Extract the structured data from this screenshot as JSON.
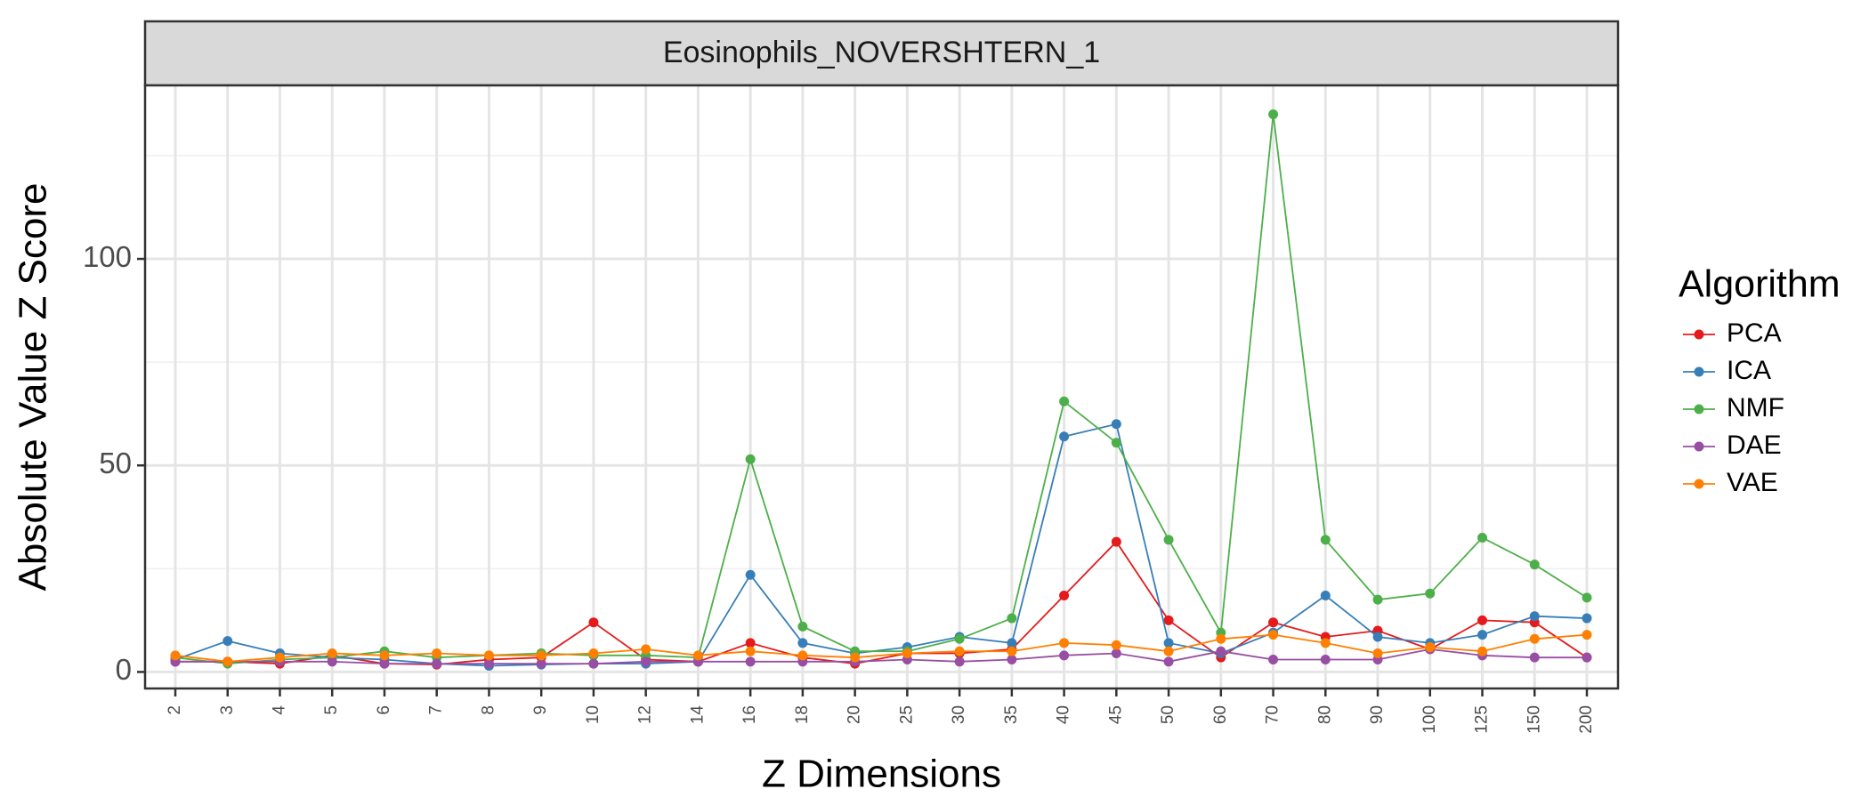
{
  "chart_data": {
    "type": "line",
    "facet_title": "Eosinophils_NOVERSHTERN_1",
    "xlabel": "Z Dimensions",
    "ylabel": "Absolute Value Z Score",
    "categories": [
      "2",
      "3",
      "4",
      "5",
      "6",
      "7",
      "8",
      "9",
      "10",
      "12",
      "14",
      "16",
      "18",
      "20",
      "25",
      "30",
      "35",
      "40",
      "45",
      "50",
      "60",
      "70",
      "80",
      "90",
      "100",
      "125",
      "150",
      "200"
    ],
    "yticks": [
      0,
      50,
      100
    ],
    "ylim": [
      -4,
      142
    ],
    "grid": true,
    "legend": {
      "title": "Algorithm",
      "placement": "right"
    },
    "series": [
      {
        "name": "PCA",
        "color": "#E41A1C",
        "values": [
          2.5,
          2.5,
          2.0,
          4.0,
          2.0,
          1.8,
          3.0,
          3.5,
          12.0,
          3.0,
          2.5,
          7.0,
          3.5,
          2.0,
          4.5,
          4.5,
          5.5,
          18.5,
          31.5,
          12.5,
          3.5,
          12.0,
          8.5,
          10.0,
          5.5,
          12.5,
          12.0,
          3.5
        ]
      },
      {
        "name": "ICA",
        "color": "#377EB8",
        "values": [
          3.0,
          7.5,
          4.5,
          3.5,
          3.0,
          2.0,
          1.5,
          1.8,
          2.0,
          2.0,
          2.5,
          23.5,
          7.0,
          4.5,
          6.0,
          8.5,
          7.0,
          57.0,
          60.0,
          7.0,
          4.5,
          9.5,
          18.5,
          8.5,
          7.0,
          9.0,
          13.5,
          13.0
        ]
      },
      {
        "name": "NMF",
        "color": "#4DAF4A",
        "values": [
          3.5,
          2.0,
          3.0,
          3.5,
          5.0,
          3.5,
          4.0,
          4.5,
          4.0,
          4.0,
          3.5,
          51.5,
          11.0,
          5.0,
          5.0,
          8.0,
          13.0,
          65.5,
          55.5,
          32.0,
          9.5,
          135.0,
          32.0,
          17.5,
          19.0,
          32.5,
          26.0,
          18.0
        ]
      },
      {
        "name": "DAE",
        "color": "#984EA3",
        "values": [
          2.5,
          2.5,
          2.5,
          2.5,
          2.0,
          2.0,
          2.0,
          2.0,
          2.0,
          2.5,
          2.5,
          2.5,
          2.5,
          2.5,
          3.0,
          2.5,
          3.0,
          4.0,
          4.5,
          2.5,
          5.0,
          3.0,
          3.0,
          3.0,
          5.5,
          4.0,
          3.5,
          3.5
        ]
      },
      {
        "name": "VAE",
        "color": "#FF7F00",
        "values": [
          4.0,
          2.5,
          3.5,
          4.5,
          4.0,
          4.5,
          4.0,
          4.0,
          4.5,
          5.5,
          4.0,
          5.0,
          4.0,
          3.5,
          4.5,
          5.0,
          5.0,
          7.0,
          6.5,
          5.0,
          8.0,
          9.0,
          7.0,
          4.5,
          6.0,
          5.0,
          8.0,
          9.0
        ]
      }
    ]
  }
}
